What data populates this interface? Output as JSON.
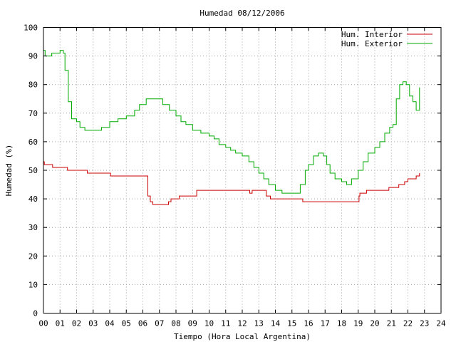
{
  "chart_data": {
    "type": "line",
    "title": "Humedad 08/12/2006",
    "xlabel": "Tiempo (Hora Local Argentina)",
    "ylabel": "Humedad (%)",
    "xlim": [
      0,
      24
    ],
    "ylim": [
      0,
      100
    ],
    "grid": true,
    "legend_position": "top-right",
    "x_ticks": [
      "00",
      "01",
      "02",
      "03",
      "04",
      "05",
      "06",
      "07",
      "08",
      "09",
      "10",
      "11",
      "12",
      "13",
      "14",
      "15",
      "16",
      "17",
      "18",
      "19",
      "20",
      "21",
      "22",
      "23",
      "24"
    ],
    "y_ticks": [
      "0",
      "10",
      "20",
      "30",
      "40",
      "50",
      "60",
      "70",
      "80",
      "90",
      "100"
    ],
    "series": [
      {
        "name": "Hum. Interior",
        "color": "#cc0000",
        "points": [
          [
            0.0,
            53
          ],
          [
            0.05,
            52
          ],
          [
            0.5,
            52
          ],
          [
            0.55,
            51
          ],
          [
            1.4,
            51
          ],
          [
            1.45,
            50
          ],
          [
            2.6,
            50
          ],
          [
            2.65,
            49
          ],
          [
            4.0,
            49
          ],
          [
            4.05,
            48
          ],
          [
            6.2,
            48
          ],
          [
            6.3,
            41
          ],
          [
            6.45,
            39
          ],
          [
            6.6,
            38
          ],
          [
            7.5,
            38
          ],
          [
            7.55,
            39
          ],
          [
            7.7,
            40
          ],
          [
            8.2,
            41
          ],
          [
            9.2,
            41
          ],
          [
            9.25,
            43
          ],
          [
            12.4,
            43
          ],
          [
            12.45,
            42
          ],
          [
            12.6,
            43
          ],
          [
            13.4,
            43
          ],
          [
            13.45,
            41
          ],
          [
            13.7,
            40
          ],
          [
            15.6,
            40
          ],
          [
            15.65,
            39
          ],
          [
            19.0,
            39
          ],
          [
            19.05,
            41
          ],
          [
            19.1,
            42
          ],
          [
            19.5,
            43
          ],
          [
            20.8,
            43
          ],
          [
            20.85,
            44
          ],
          [
            21.4,
            44
          ],
          [
            21.45,
            45
          ],
          [
            21.8,
            46
          ],
          [
            22.0,
            47
          ],
          [
            22.5,
            48
          ],
          [
            22.7,
            49
          ]
        ]
      },
      {
        "name": "Hum. Exterior",
        "color": "#00aa00",
        "points": [
          [
            0.0,
            92
          ],
          [
            0.1,
            90
          ],
          [
            0.5,
            91
          ],
          [
            1.0,
            92
          ],
          [
            1.2,
            91
          ],
          [
            1.3,
            85
          ],
          [
            1.5,
            74
          ],
          [
            1.7,
            68
          ],
          [
            2.0,
            67
          ],
          [
            2.2,
            65
          ],
          [
            2.5,
            64
          ],
          [
            3.0,
            64
          ],
          [
            3.5,
            65
          ],
          [
            4.0,
            67
          ],
          [
            4.5,
            68
          ],
          [
            5.0,
            69
          ],
          [
            5.5,
            71
          ],
          [
            5.8,
            73
          ],
          [
            6.2,
            75
          ],
          [
            6.8,
            75
          ],
          [
            7.2,
            73
          ],
          [
            7.6,
            71
          ],
          [
            8.0,
            69
          ],
          [
            8.3,
            67
          ],
          [
            8.6,
            66
          ],
          [
            9.0,
            64
          ],
          [
            9.5,
            63
          ],
          [
            10.0,
            62
          ],
          [
            10.3,
            61
          ],
          [
            10.6,
            59
          ],
          [
            11.0,
            58
          ],
          [
            11.3,
            57
          ],
          [
            11.6,
            56
          ],
          [
            12.0,
            55
          ],
          [
            12.4,
            53
          ],
          [
            12.7,
            51
          ],
          [
            13.0,
            49
          ],
          [
            13.3,
            47
          ],
          [
            13.6,
            45
          ],
          [
            14.0,
            43
          ],
          [
            14.4,
            42
          ],
          [
            14.8,
            42
          ],
          [
            15.2,
            42
          ],
          [
            15.5,
            45
          ],
          [
            15.8,
            50
          ],
          [
            16.0,
            52
          ],
          [
            16.3,
            55
          ],
          [
            16.6,
            56
          ],
          [
            16.9,
            55
          ],
          [
            17.1,
            52
          ],
          [
            17.3,
            49
          ],
          [
            17.6,
            47
          ],
          [
            18.0,
            46
          ],
          [
            18.3,
            45
          ],
          [
            18.6,
            47
          ],
          [
            19.0,
            50
          ],
          [
            19.3,
            53
          ],
          [
            19.6,
            56
          ],
          [
            20.0,
            58
          ],
          [
            20.3,
            60
          ],
          [
            20.6,
            63
          ],
          [
            20.9,
            65
          ],
          [
            21.1,
            66
          ],
          [
            21.3,
            75
          ],
          [
            21.5,
            80
          ],
          [
            21.7,
            81
          ],
          [
            21.9,
            80
          ],
          [
            22.1,
            76
          ],
          [
            22.3,
            74
          ],
          [
            22.5,
            71
          ],
          [
            22.7,
            79
          ]
        ]
      }
    ]
  }
}
